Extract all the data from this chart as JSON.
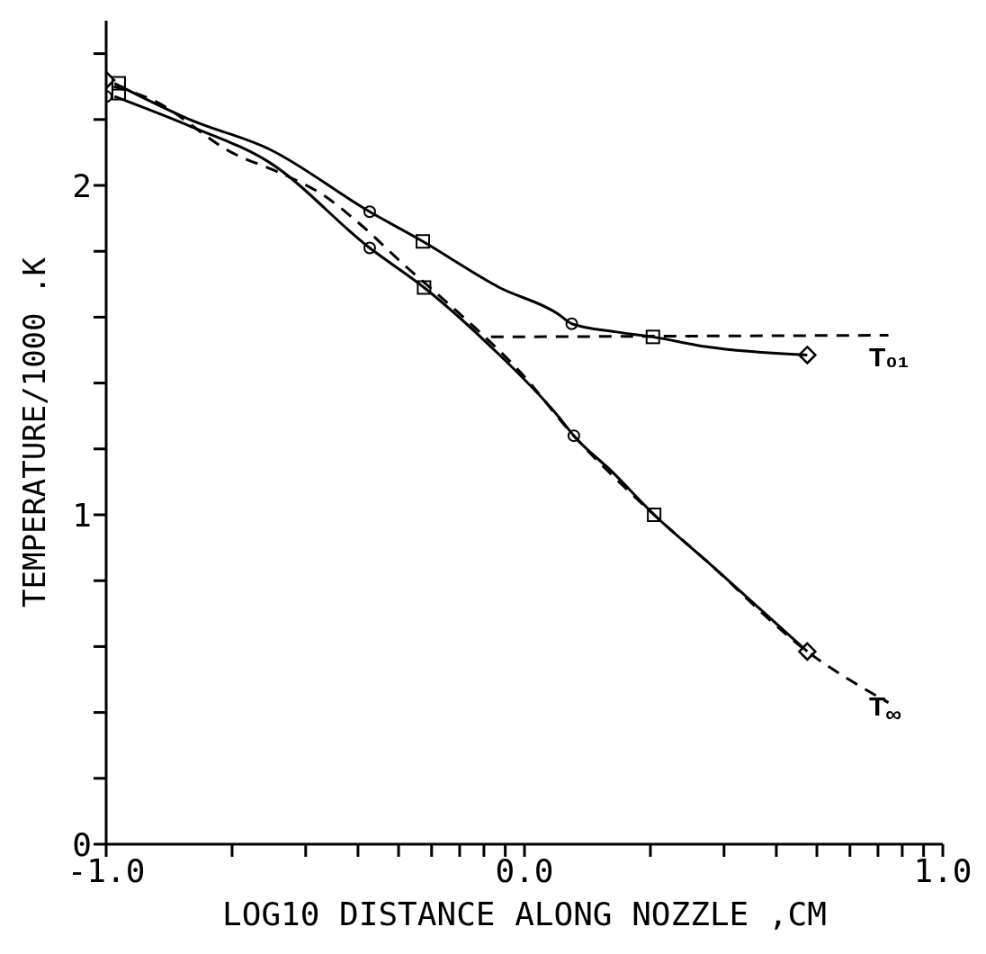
{
  "chart_data": {
    "type": "line",
    "xlabel": "LOG10 DISTANCE ALONG NOZZLE ,CM",
    "ylabel": "TEMPERATURE/1000 .K",
    "xlim": [
      -1,
      1
    ],
    "ylim": [
      0,
      2.5
    ],
    "xticks": [
      {
        "value": -1,
        "label": "-1.0"
      },
      {
        "value": -0.699,
        "label": null
      },
      {
        "value": -0.523,
        "label": null
      },
      {
        "value": -0.398,
        "label": null
      },
      {
        "value": -0.301,
        "label": null
      },
      {
        "value": -0.222,
        "label": null
      },
      {
        "value": -0.155,
        "label": null
      },
      {
        "value": -0.097,
        "label": null
      },
      {
        "value": -0.046,
        "label": null
      },
      {
        "value": 0,
        "label": "0.0"
      },
      {
        "value": 0.301,
        "label": null
      },
      {
        "value": 0.477,
        "label": null
      },
      {
        "value": 0.602,
        "label": null
      },
      {
        "value": 0.699,
        "label": null
      },
      {
        "value": 0.778,
        "label": null
      },
      {
        "value": 0.845,
        "label": null
      },
      {
        "value": 0.903,
        "label": null
      },
      {
        "value": 0.954,
        "label": null
      },
      {
        "value": 1,
        "label": "1.0"
      }
    ],
    "yticks": [
      0,
      {
        "value": 0.2,
        "label": null
      },
      {
        "value": 0.4,
        "label": null
      },
      {
        "value": 0.6,
        "label": null
      },
      {
        "value": 0.8,
        "label": null
      },
      1,
      {
        "value": 1.2,
        "label": null
      },
      {
        "value": 1.4,
        "label": null
      },
      {
        "value": 1.6,
        "label": null
      },
      {
        "value": 1.8,
        "label": null
      },
      2,
      {
        "value": 2.2,
        "label": null
      },
      {
        "value": 2.4,
        "label": null
      }
    ],
    "grid": false,
    "legend": false,
    "series": [
      {
        "color": "#000000",
        "line_style": "solid",
        "marker": "none",
        "x": [
          -0.98,
          -0.8,
          -0.61,
          -0.37,
          -0.243,
          -0.06,
          0.08,
          0.113,
          0.22,
          0.307,
          0.435,
          0.676
        ],
        "values": [
          2.31,
          2.2,
          2.11,
          1.92,
          1.83,
          1.69,
          1.61,
          1.58,
          1.555,
          1.54,
          1.51,
          1.485
        ]
      },
      {
        "color": "#000000",
        "line_style": "solid",
        "marker": "none",
        "x": [
          -0.98,
          -0.8,
          -0.61,
          -0.37,
          -0.24,
          -0.08,
          0.08,
          0.118,
          0.21,
          0.31,
          0.435,
          0.676
        ],
        "values": [
          2.27,
          2.18,
          2.07,
          1.81,
          1.69,
          1.51,
          1.3,
          1.24,
          1.13,
          1.0,
          0.86,
          0.585
        ]
      },
      {
        "color": "#000000",
        "line_style": "dashed",
        "marker": "none",
        "x": [
          -0.98,
          -0.89,
          -0.7,
          -0.57,
          -0.48,
          -0.4,
          -0.28,
          -0.19,
          -0.12,
          -0.015,
          0.118,
          0.31,
          0.435,
          0.676,
          0.87
        ],
        "values": [
          2.3,
          2.26,
          2.1,
          2.03,
          1.97,
          1.89,
          1.75,
          1.65,
          1.57,
          1.44,
          1.24,
          1.0,
          0.86,
          0.585,
          0.43
        ]
      },
      {
        "color": "#000000",
        "line_style": "dashed",
        "marker": "none",
        "x": [
          -0.08,
          0.87
        ],
        "values": [
          1.54,
          1.545
        ]
      },
      {
        "type": "scatter",
        "color": "#000000",
        "marker": "circle",
        "x": [
          -1.0,
          -0.37,
          -0.37,
          0.113,
          0.118
        ],
        "values": [
          2.27,
          1.92,
          1.81,
          1.58,
          1.24
        ]
      },
      {
        "type": "scatter",
        "color": "#000000",
        "marker": "square",
        "x": [
          -0.97,
          -0.97,
          -0.243,
          -0.24,
          0.307,
          0.31
        ],
        "values": [
          2.31,
          2.28,
          1.83,
          1.69,
          1.54,
          1.0
        ]
      },
      {
        "type": "scatter",
        "color": "#000000",
        "marker": "diamond",
        "x": [
          -1.0,
          0.676,
          0.676
        ],
        "values": [
          2.32,
          1.485,
          0.585
        ]
      }
    ],
    "annotations": [
      "T₀₁",
      "T$_{∞}$"
    ]
  }
}
